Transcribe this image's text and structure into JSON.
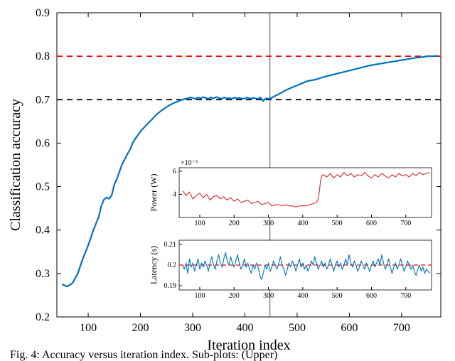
{
  "main_chart": {
    "type": "line",
    "x_label": "Iteration index",
    "y_label": "Classification accuracy",
    "x_lim": [
      40,
      775
    ],
    "y_lim": [
      0.2,
      0.9
    ],
    "x_ticks": [
      100,
      200,
      300,
      400,
      500,
      600,
      700
    ],
    "y_ticks": [
      0.2,
      0.3,
      0.4,
      0.5,
      0.6,
      0.7,
      0.8,
      0.9
    ],
    "label_fontsize": 20,
    "tick_fontsize": 16,
    "background_color": "#ffffff",
    "border_color": "#000000",
    "grid": false,
    "series": {
      "color": "#0072bd",
      "line_width": 2.2,
      "data": [
        [
          50,
          0.275
        ],
        [
          60,
          0.27
        ],
        [
          70,
          0.278
        ],
        [
          80,
          0.3
        ],
        [
          90,
          0.335
        ],
        [
          100,
          0.365
        ],
        [
          110,
          0.4
        ],
        [
          120,
          0.43
        ],
        [
          125,
          0.455
        ],
        [
          130,
          0.47
        ],
        [
          135,
          0.475
        ],
        [
          140,
          0.472
        ],
        [
          145,
          0.48
        ],
        [
          150,
          0.505
        ],
        [
          155,
          0.518
        ],
        [
          160,
          0.535
        ],
        [
          165,
          0.552
        ],
        [
          170,
          0.563
        ],
        [
          175,
          0.575
        ],
        [
          180,
          0.585
        ],
        [
          185,
          0.6
        ],
        [
          190,
          0.61
        ],
        [
          195,
          0.618
        ],
        [
          200,
          0.627
        ],
        [
          210,
          0.64
        ],
        [
          220,
          0.652
        ],
        [
          230,
          0.665
        ],
        [
          240,
          0.675
        ],
        [
          250,
          0.683
        ],
        [
          255,
          0.687
        ],
        [
          260,
          0.69
        ],
        [
          265,
          0.693
        ],
        [
          270,
          0.695
        ],
        [
          275,
          0.698
        ],
        [
          280,
          0.7
        ],
        [
          285,
          0.702
        ],
        [
          290,
          0.703
        ],
        [
          295,
          0.705
        ],
        [
          300,
          0.704
        ],
        [
          305,
          0.702
        ],
        [
          310,
          0.705
        ],
        [
          315,
          0.703
        ],
        [
          320,
          0.706
        ],
        [
          325,
          0.704
        ],
        [
          330,
          0.702
        ],
        [
          335,
          0.705
        ],
        [
          340,
          0.703
        ],
        [
          345,
          0.706
        ],
        [
          350,
          0.704
        ],
        [
          355,
          0.702
        ],
        [
          360,
          0.705
        ],
        [
          365,
          0.703
        ],
        [
          370,
          0.704
        ],
        [
          375,
          0.702
        ],
        [
          380,
          0.705
        ],
        [
          385,
          0.703
        ],
        [
          390,
          0.704
        ],
        [
          395,
          0.702
        ],
        [
          400,
          0.703
        ],
        [
          405,
          0.705
        ],
        [
          410,
          0.702
        ],
        [
          415,
          0.704
        ],
        [
          420,
          0.703
        ],
        [
          425,
          0.702
        ],
        [
          430,
          0.705
        ],
        [
          435,
          0.697
        ],
        [
          440,
          0.703
        ],
        [
          445,
          0.702
        ],
        [
          450,
          0.704
        ],
        [
          455,
          0.707
        ],
        [
          460,
          0.71
        ],
        [
          465,
          0.713
        ],
        [
          470,
          0.716
        ],
        [
          475,
          0.72
        ],
        [
          480,
          0.723
        ],
        [
          490,
          0.728
        ],
        [
          500,
          0.733
        ],
        [
          510,
          0.738
        ],
        [
          520,
          0.743
        ],
        [
          530,
          0.745
        ],
        [
          540,
          0.748
        ],
        [
          550,
          0.752
        ],
        [
          560,
          0.755
        ],
        [
          570,
          0.758
        ],
        [
          580,
          0.761
        ],
        [
          590,
          0.764
        ],
        [
          600,
          0.767
        ],
        [
          610,
          0.77
        ],
        [
          620,
          0.773
        ],
        [
          630,
          0.776
        ],
        [
          640,
          0.779
        ],
        [
          650,
          0.781
        ],
        [
          660,
          0.783
        ],
        [
          670,
          0.785
        ],
        [
          680,
          0.787
        ],
        [
          690,
          0.789
        ],
        [
          700,
          0.791
        ],
        [
          710,
          0.793
        ],
        [
          720,
          0.795
        ],
        [
          730,
          0.797
        ],
        [
          740,
          0.798
        ],
        [
          750,
          0.8
        ],
        [
          760,
          0.8
        ],
        [
          770,
          0.801
        ]
      ]
    },
    "ref_lines": [
      {
        "y": 0.7,
        "color": "#000000",
        "dash": "8,6",
        "width": 1.8
      },
      {
        "y": 0.8,
        "color": "#ff0000",
        "dash": "8,6",
        "width": 1.8
      }
    ],
    "marker_line": {
      "x": 448,
      "color": "#404040",
      "width": 0.9
    }
  },
  "inset_power": {
    "type": "line",
    "y_label": "Power (W)",
    "y_multiplier_text": "×10⁻³",
    "x_lim": [
      40,
      775
    ],
    "y_lim": [
      2,
      6.3
    ],
    "x_ticks": [
      100,
      200,
      300,
      400,
      500,
      600,
      700
    ],
    "y_ticks": [
      4,
      6
    ],
    "color": "#d62728",
    "line_width": 1.1,
    "data": [
      [
        50,
        4.3
      ],
      [
        60,
        3.9
      ],
      [
        70,
        4.2
      ],
      [
        80,
        3.6
      ],
      [
        90,
        3.9
      ],
      [
        100,
        4.1
      ],
      [
        110,
        3.7
      ],
      [
        120,
        4.0
      ],
      [
        130,
        3.5
      ],
      [
        140,
        3.8
      ],
      [
        150,
        3.9
      ],
      [
        160,
        3.6
      ],
      [
        170,
        3.8
      ],
      [
        180,
        3.5
      ],
      [
        190,
        3.7
      ],
      [
        200,
        3.4
      ],
      [
        210,
        3.6
      ],
      [
        220,
        3.3
      ],
      [
        230,
        3.4
      ],
      [
        240,
        3.5
      ],
      [
        250,
        3.2
      ],
      [
        260,
        3.3
      ],
      [
        270,
        3.4
      ],
      [
        280,
        3.1
      ],
      [
        290,
        3.2
      ],
      [
        300,
        3.3
      ],
      [
        310,
        3.0
      ],
      [
        320,
        3.1
      ],
      [
        330,
        3.1
      ],
      [
        340,
        3.0
      ],
      [
        350,
        3.1
      ],
      [
        360,
        3.0
      ],
      [
        370,
        3.0
      ],
      [
        380,
        2.9
      ],
      [
        390,
        3.0
      ],
      [
        400,
        3.0
      ],
      [
        410,
        3.0
      ],
      [
        420,
        3.1
      ],
      [
        430,
        3.2
      ],
      [
        440,
        3.3
      ],
      [
        445,
        3.6
      ],
      [
        448,
        4.2
      ],
      [
        452,
        5.2
      ],
      [
        455,
        5.6
      ],
      [
        460,
        5.7
      ],
      [
        470,
        5.5
      ],
      [
        480,
        5.8
      ],
      [
        490,
        5.4
      ],
      [
        500,
        5.7
      ],
      [
        510,
        5.5
      ],
      [
        520,
        5.9
      ],
      [
        530,
        5.6
      ],
      [
        540,
        5.8
      ],
      [
        550,
        5.5
      ],
      [
        560,
        5.7
      ],
      [
        570,
        5.6
      ],
      [
        580,
        5.9
      ],
      [
        590,
        5.6
      ],
      [
        600,
        5.4
      ],
      [
        610,
        5.7
      ],
      [
        620,
        5.5
      ],
      [
        630,
        5.8
      ],
      [
        640,
        5.6
      ],
      [
        650,
        5.4
      ],
      [
        660,
        5.7
      ],
      [
        670,
        5.5
      ],
      [
        680,
        5.8
      ],
      [
        690,
        5.6
      ],
      [
        700,
        5.7
      ],
      [
        710,
        5.5
      ],
      [
        720,
        5.8
      ],
      [
        730,
        5.6
      ],
      [
        740,
        5.9
      ],
      [
        750,
        5.7
      ],
      [
        760,
        5.8
      ],
      [
        770,
        5.9
      ]
    ]
  },
  "inset_latency": {
    "type": "line",
    "y_label": "Latency (s)",
    "x_lim": [
      40,
      775
    ],
    "y_lim": [
      0.188,
      0.212
    ],
    "x_ticks": [
      100,
      200,
      300,
      400,
      500,
      600,
      700
    ],
    "y_ticks": [
      0.19,
      0.2,
      0.21
    ],
    "y_tick_labels": [
      "0.19",
      "0.2",
      "0.21"
    ],
    "color": "#0072bd",
    "line_width": 1.1,
    "ref_line": {
      "y": 0.2,
      "color": "#ff0000",
      "dash": "6,4",
      "width": 1.2
    },
    "data": [
      [
        50,
        0.2
      ],
      [
        55,
        0.198
      ],
      [
        60,
        0.201
      ],
      [
        65,
        0.196
      ],
      [
        70,
        0.203
      ],
      [
        75,
        0.199
      ],
      [
        80,
        0.201
      ],
      [
        85,
        0.197
      ],
      [
        90,
        0.2
      ],
      [
        95,
        0.203
      ],
      [
        100,
        0.198
      ],
      [
        105,
        0.201
      ],
      [
        110,
        0.199
      ],
      [
        115,
        0.202
      ],
      [
        120,
        0.2
      ],
      [
        125,
        0.197
      ],
      [
        130,
        0.201
      ],
      [
        135,
        0.204
      ],
      [
        140,
        0.2
      ],
      [
        145,
        0.198
      ],
      [
        150,
        0.202
      ],
      [
        155,
        0.205
      ],
      [
        160,
        0.201
      ],
      [
        165,
        0.199
      ],
      [
        170,
        0.203
      ],
      [
        175,
        0.206
      ],
      [
        180,
        0.202
      ],
      [
        185,
        0.2
      ],
      [
        190,
        0.204
      ],
      [
        195,
        0.201
      ],
      [
        200,
        0.199
      ],
      [
        205,
        0.202
      ],
      [
        210,
        0.205
      ],
      [
        215,
        0.201
      ],
      [
        220,
        0.198
      ],
      [
        225,
        0.2
      ],
      [
        230,
        0.203
      ],
      [
        235,
        0.199
      ],
      [
        240,
        0.201
      ],
      [
        245,
        0.198
      ],
      [
        250,
        0.196
      ],
      [
        255,
        0.2
      ],
      [
        260,
        0.198
      ],
      [
        265,
        0.201
      ],
      [
        270,
        0.199
      ],
      [
        275,
        0.195
      ],
      [
        280,
        0.193
      ],
      [
        285,
        0.196
      ],
      [
        290,
        0.2
      ],
      [
        295,
        0.198
      ],
      [
        300,
        0.201
      ],
      [
        305,
        0.197
      ],
      [
        310,
        0.199
      ],
      [
        315,
        0.202
      ],
      [
        320,
        0.2
      ],
      [
        325,
        0.198
      ],
      [
        330,
        0.201
      ],
      [
        335,
        0.204
      ],
      [
        340,
        0.2
      ],
      [
        345,
        0.198
      ],
      [
        350,
        0.195
      ],
      [
        355,
        0.198
      ],
      [
        360,
        0.201
      ],
      [
        365,
        0.199
      ],
      [
        370,
        0.202
      ],
      [
        375,
        0.2
      ],
      [
        380,
        0.197
      ],
      [
        385,
        0.2
      ],
      [
        390,
        0.203
      ],
      [
        395,
        0.199
      ],
      [
        400,
        0.201
      ],
      [
        405,
        0.198
      ],
      [
        410,
        0.2
      ],
      [
        415,
        0.197
      ],
      [
        420,
        0.199
      ],
      [
        425,
        0.202
      ],
      [
        430,
        0.2
      ],
      [
        435,
        0.204
      ],
      [
        440,
        0.201
      ],
      [
        445,
        0.198
      ],
      [
        450,
        0.2
      ],
      [
        455,
        0.202
      ],
      [
        460,
        0.199
      ],
      [
        465,
        0.201
      ],
      [
        470,
        0.198
      ],
      [
        475,
        0.2
      ],
      [
        480,
        0.203
      ],
      [
        485,
        0.2
      ],
      [
        490,
        0.197
      ],
      [
        495,
        0.2
      ],
      [
        500,
        0.202
      ],
      [
        505,
        0.199
      ],
      [
        510,
        0.201
      ],
      [
        515,
        0.198
      ],
      [
        520,
        0.2
      ],
      [
        525,
        0.203
      ],
      [
        530,
        0.2
      ],
      [
        535,
        0.205
      ],
      [
        540,
        0.201
      ],
      [
        545,
        0.199
      ],
      [
        550,
        0.202
      ],
      [
        555,
        0.2
      ],
      [
        560,
        0.197
      ],
      [
        565,
        0.199
      ],
      [
        570,
        0.202
      ],
      [
        575,
        0.2
      ],
      [
        580,
        0.198
      ],
      [
        585,
        0.201
      ],
      [
        590,
        0.199
      ],
      [
        595,
        0.197
      ],
      [
        600,
        0.2
      ],
      [
        605,
        0.202
      ],
      [
        610,
        0.199
      ],
      [
        615,
        0.201
      ],
      [
        620,
        0.203
      ],
      [
        625,
        0.2
      ],
      [
        630,
        0.205
      ],
      [
        635,
        0.201
      ],
      [
        640,
        0.198
      ],
      [
        645,
        0.2
      ],
      [
        650,
        0.203
      ],
      [
        655,
        0.199
      ],
      [
        660,
        0.196
      ],
      [
        665,
        0.199
      ],
      [
        670,
        0.201
      ],
      [
        675,
        0.198
      ],
      [
        680,
        0.2
      ],
      [
        685,
        0.203
      ],
      [
        690,
        0.2
      ],
      [
        695,
        0.197
      ],
      [
        700,
        0.199
      ],
      [
        705,
        0.202
      ],
      [
        710,
        0.2
      ],
      [
        715,
        0.198
      ],
      [
        720,
        0.2
      ],
      [
        725,
        0.197
      ],
      [
        730,
        0.195
      ],
      [
        735,
        0.198
      ],
      [
        740,
        0.2
      ],
      [
        745,
        0.197
      ],
      [
        750,
        0.199
      ],
      [
        755,
        0.196
      ],
      [
        760,
        0.198
      ],
      [
        765,
        0.197
      ],
      [
        770,
        0.196
      ]
    ]
  },
  "caption": "Fig. 4: Accuracy versus iteration index. Sub-plots: (Upper)"
}
